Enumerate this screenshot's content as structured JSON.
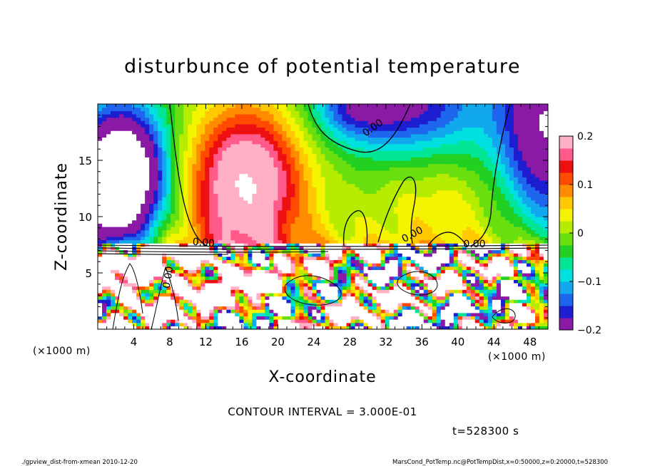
{
  "chart_data": {
    "type": "heatmap",
    "title": "disturbunce of potential temperature",
    "xlabel": "X-coordinate",
    "ylabel": "Z-coordinate",
    "x_unit": "(×1000 m)",
    "y_unit": "(×1000 m)",
    "xlim": [
      0,
      50
    ],
    "ylim": [
      0,
      20
    ],
    "x_ticks": [
      4,
      8,
      12,
      16,
      20,
      24,
      28,
      32,
      36,
      40,
      44,
      48
    ],
    "y_ticks": [
      5,
      10,
      15
    ],
    "colorbar": {
      "range": [
        -0.2,
        0.2
      ],
      "ticks": [
        0.2,
        0.1,
        0,
        -0.1,
        -0.2
      ],
      "tick_labels": [
        "0.2",
        "0.1",
        "0",
        "−0.1",
        "−0.2"
      ],
      "colors": [
        "#8a1aa6",
        "#1d1dd2",
        "#1f66ee",
        "#11a8ee",
        "#00e0e0",
        "#00e694",
        "#22d022",
        "#6adf10",
        "#b6ec00",
        "#f4f400",
        "#ffc800",
        "#ff8c00",
        "#ff4a00",
        "#ee1010",
        "#ff5a8a",
        "#ffb0c4"
      ]
    },
    "contour_labels": [
      "0.00",
      "0.00",
      "0.00",
      "0.00",
      "0.00"
    ],
    "contour_interval_text": "CONTOUR INTERVAL = 3.000E-01",
    "time_text": "t=528300 s"
  },
  "footer": {
    "left": "./gpview_dist-from-xmean  2010-12-20",
    "right": "MarsCond_PotTemp.nc@PotTempDist,x=0:50000,z=0:20000,t=528300"
  }
}
